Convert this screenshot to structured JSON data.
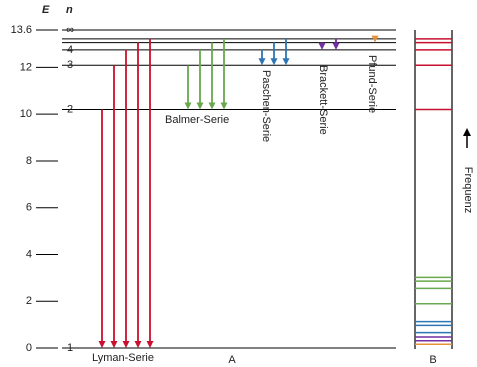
{
  "axis": {
    "energy_label": "E",
    "n_label": "n",
    "ticks": [
      0,
      2,
      4,
      6,
      8,
      10,
      12,
      13.6
    ]
  },
  "levels": [
    {
      "label": "1",
      "energy": 0
    },
    {
      "label": "2",
      "energy": 10.2
    },
    {
      "label": "3",
      "energy": 12.09
    },
    {
      "label": "4",
      "energy": 12.75
    },
    {
      "energy": 13.06
    },
    {
      "energy": 13.22
    },
    {
      "label": "∞",
      "energy": 13.6
    }
  ],
  "series": [
    {
      "name": "Lyman-Serie",
      "color": "#c8102e",
      "lower": 0
    },
    {
      "name": "Balmer-Serie",
      "color": "#6aa84f",
      "lower": 1
    },
    {
      "name": "Paschen-Serie",
      "color": "#2e75b6",
      "lower": 2
    },
    {
      "name": "Brackett-Serie",
      "color": "#7030a0",
      "lower": 3
    },
    {
      "name": "Pfund-Serie",
      "color": "#e69138",
      "lower": 4
    }
  ],
  "panel_labels": [
    "A",
    "B"
  ],
  "frequency_label": "Frequenz"
}
